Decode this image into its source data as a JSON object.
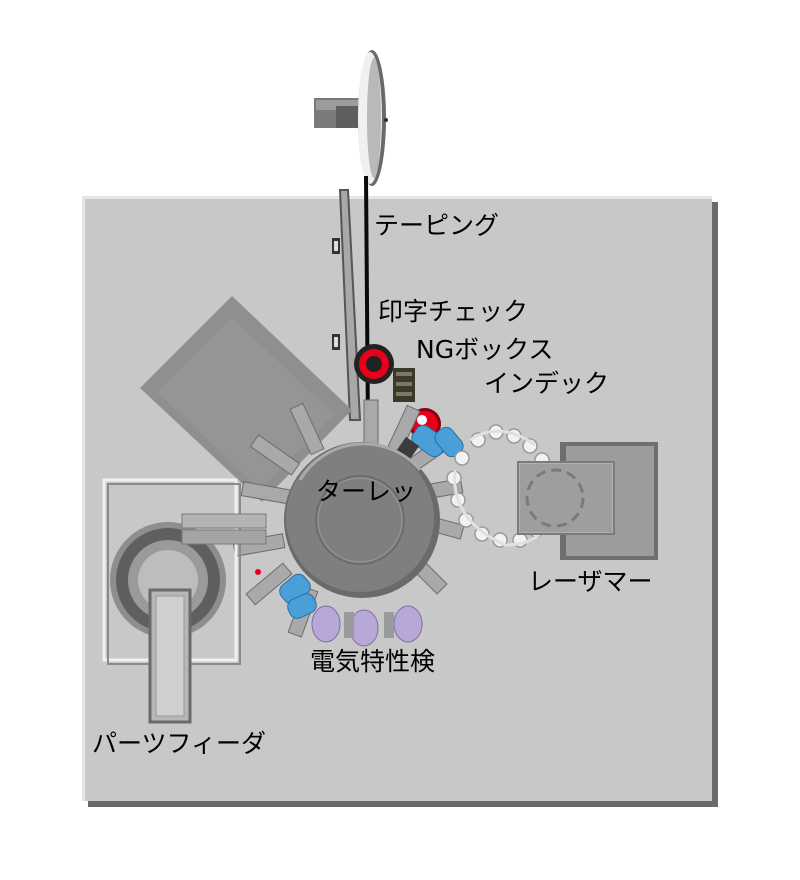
{
  "labels": {
    "taping": "テーピング",
    "print_check": "印字チェック",
    "ng_box": "NGボックス",
    "index": "インデック",
    "turret": "ターレッ",
    "laser_marker": "レーザマー",
    "electrical_test": "電気特性検",
    "parts_feeder": "パーツフィーダ"
  },
  "colors": {
    "background": "#ffffff",
    "base_plate": "#c8c8c8",
    "turret": "#7f7f7f",
    "marker_red": "#e8001a",
    "head_blue": "#4a9fd8",
    "probe_purple": "#b8a8d8",
    "bead_white": "#f2f2f2"
  }
}
